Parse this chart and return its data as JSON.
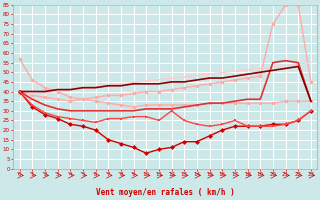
{
  "background_color": "#cde8e8",
  "grid_color": "#ffffff",
  "xlabel": "Vent moyen/en rafales ( km/h )",
  "xlabel_color": "#cc0000",
  "tick_color": "#cc0000",
  "xlim": [
    -0.5,
    23.5
  ],
  "ylim": [
    0,
    85
  ],
  "yticks": [
    0,
    5,
    10,
    15,
    20,
    25,
    30,
    35,
    40,
    45,
    50,
    55,
    60,
    65,
    70,
    75,
    80,
    85
  ],
  "xticks": [
    0,
    1,
    2,
    3,
    4,
    5,
    6,
    7,
    8,
    9,
    10,
    11,
    12,
    13,
    14,
    15,
    16,
    17,
    18,
    19,
    20,
    21,
    22,
    23
  ],
  "lines": [
    {
      "x": [
        0,
        1,
        2,
        3,
        4,
        5,
        6,
        7,
        8,
        9,
        10,
        11,
        12,
        13,
        14,
        15,
        16,
        17,
        18,
        19,
        20,
        21,
        22,
        23
      ],
      "y": [
        40,
        38,
        37,
        36,
        35,
        36,
        37,
        38,
        38,
        39,
        40,
        40,
        41,
        42,
        43,
        44,
        45,
        46,
        47,
        48,
        75,
        85,
        85,
        45
      ],
      "color": "#ffaaaa",
      "lw": 1.0,
      "marker": "o",
      "ms": 2.5,
      "ls": "-"
    },
    {
      "x": [
        0,
        1,
        2,
        3,
        4,
        5,
        6,
        7,
        8,
        9,
        10,
        11,
        12,
        13,
        14,
        15,
        16,
        17,
        18,
        19,
        20,
        21,
        22,
        23
      ],
      "y": [
        57,
        46,
        42,
        40,
        37,
        36,
        35,
        34,
        33,
        32,
        33,
        33,
        33,
        33,
        33,
        34,
        34,
        34,
        34,
        34,
        34,
        35,
        35,
        35
      ],
      "color": "#ffaaaa",
      "lw": 1.0,
      "marker": "o",
      "ms": 2.5,
      "ls": "-"
    },
    {
      "x": [
        0,
        23
      ],
      "y": [
        38,
        55
      ],
      "color": "#ffcccc",
      "lw": 1.0,
      "marker": null,
      "ms": 0,
      "ls": "-"
    },
    {
      "x": [
        0,
        1,
        2,
        3,
        4,
        5,
        6,
        7,
        8,
        9,
        10,
        11,
        12,
        13,
        14,
        15,
        16,
        17,
        18,
        19,
        20,
        21,
        22,
        23
      ],
      "y": [
        40,
        36,
        33,
        31,
        30,
        30,
        30,
        30,
        30,
        30,
        31,
        31,
        31,
        32,
        33,
        34,
        34,
        35,
        36,
        36,
        55,
        56,
        55,
        35
      ],
      "color": "#dd3333",
      "lw": 1.2,
      "marker": null,
      "ms": 0,
      "ls": "-"
    },
    {
      "x": [
        0,
        1,
        2,
        3,
        4,
        5,
        6,
        7,
        8,
        9,
        10,
        11,
        12,
        13,
        14,
        15,
        16,
        17,
        18,
        19,
        20,
        21,
        22,
        23
      ],
      "y": [
        40,
        40,
        40,
        41,
        41,
        42,
        42,
        43,
        43,
        44,
        44,
        44,
        45,
        45,
        46,
        47,
        47,
        48,
        49,
        50,
        51,
        52,
        53,
        35
      ],
      "color": "#880000",
      "lw": 1.2,
      "marker": null,
      "ms": 0,
      "ls": "-"
    },
    {
      "x": [
        0,
        1,
        2,
        3,
        4,
        5,
        6,
        7,
        8,
        9,
        10,
        11,
        12,
        13,
        14,
        15,
        16,
        17,
        18,
        19,
        20,
        21,
        22,
        23
      ],
      "y": [
        40,
        32,
        28,
        26,
        23,
        22,
        20,
        15,
        13,
        11,
        8,
        10,
        11,
        14,
        14,
        17,
        20,
        22,
        22,
        22,
        23,
        23,
        25,
        30
      ],
      "color": "#cc0000",
      "lw": 1.0,
      "marker": "D",
      "ms": 2.5,
      "ls": "-"
    },
    {
      "x": [
        0,
        1,
        2,
        3,
        4,
        5,
        6,
        7,
        8,
        9,
        10,
        11,
        12,
        13,
        14,
        15,
        16,
        17,
        18,
        19,
        20,
        21,
        22,
        23
      ],
      "y": [
        40,
        33,
        29,
        27,
        26,
        25,
        24,
        26,
        26,
        27,
        27,
        25,
        30,
        25,
        23,
        22,
        23,
        25,
        22,
        22,
        22,
        23,
        25,
        30
      ],
      "color": "#ff4444",
      "lw": 1.0,
      "marker": "s",
      "ms": 2.0,
      "ls": "-"
    }
  ]
}
